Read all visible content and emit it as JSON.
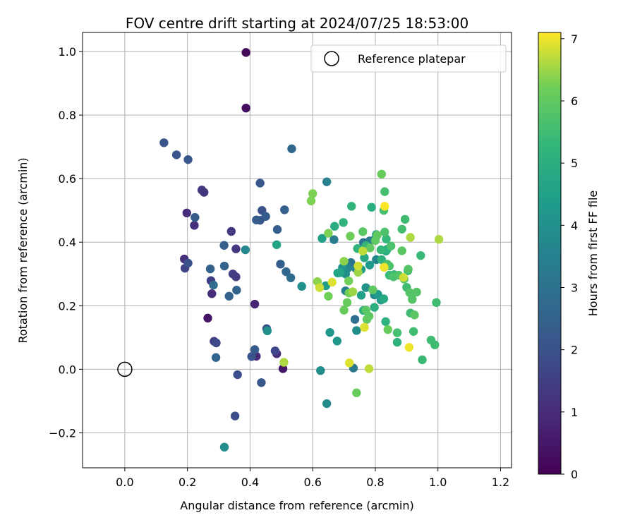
{
  "chart_data": {
    "type": "scatter",
    "title": "FOV centre drift starting at 2024/07/25 18:53:00",
    "xlabel": "Angular distance from reference (arcmin)",
    "ylabel": "Rotation from reference (arcmin)",
    "xlim": [
      -0.135,
      1.235
    ],
    "ylim": [
      -0.31,
      1.06
    ],
    "xticks": [
      0.0,
      0.2,
      0.4,
      0.6,
      0.8,
      1.0,
      1.2
    ],
    "yticks": [
      -0.2,
      0.0,
      0.2,
      0.4,
      0.6,
      0.8,
      1.0
    ],
    "xtick_labels": [
      "0.0",
      "0.2",
      "0.4",
      "0.6",
      "0.8",
      "1.0",
      "1.2"
    ],
    "ytick_labels": [
      "−0.2",
      "0.0",
      "0.2",
      "0.4",
      "0.6",
      "0.8",
      "1.0"
    ],
    "grid": true,
    "colormap": "viridis",
    "colorbar": {
      "label": "Hours from first FF file",
      "range": [
        0,
        7.1
      ],
      "ticks": [
        0,
        1,
        2,
        3,
        4,
        5,
        6,
        7
      ],
      "tick_labels": [
        "0",
        "1",
        "2",
        "3",
        "4",
        "5",
        "6",
        "7"
      ]
    },
    "legend": {
      "placement": "top-right",
      "label": "Reference platepar"
    },
    "reference_point": {
      "x": 0.0,
      "y": 0.0
    },
    "points": [
      {
        "x": 0.387,
        "y": 0.997,
        "h": 0.2
      },
      {
        "x": 0.387,
        "y": 0.822,
        "h": 0.3
      },
      {
        "x": 0.265,
        "y": 0.161,
        "h": 0.4
      },
      {
        "x": 0.505,
        "y": 0.002,
        "h": 0.5
      },
      {
        "x": 0.415,
        "y": 0.205,
        "h": 0.8
      },
      {
        "x": 0.42,
        "y": 0.041,
        "h": 0.9
      },
      {
        "x": 0.485,
        "y": 0.049,
        "h": 1.0
      },
      {
        "x": 0.278,
        "y": 0.238,
        "h": 1.0
      },
      {
        "x": 0.198,
        "y": 0.492,
        "h": 1.0
      },
      {
        "x": 0.222,
        "y": 0.453,
        "h": 1.1
      },
      {
        "x": 0.19,
        "y": 0.347,
        "h": 1.1
      },
      {
        "x": 0.253,
        "y": 0.557,
        "h": 1.2
      },
      {
        "x": 0.246,
        "y": 0.564,
        "h": 1.3
      },
      {
        "x": 0.34,
        "y": 0.434,
        "h": 1.3
      },
      {
        "x": 0.355,
        "y": 0.379,
        "h": 1.3
      },
      {
        "x": 0.345,
        "y": 0.3,
        "h": 1.4
      },
      {
        "x": 0.355,
        "y": 0.291,
        "h": 1.4
      },
      {
        "x": 0.275,
        "y": 0.279,
        "h": 1.5
      },
      {
        "x": 0.285,
        "y": 0.088,
        "h": 1.5
      },
      {
        "x": 0.192,
        "y": 0.318,
        "h": 1.6
      },
      {
        "x": 0.48,
        "y": 0.058,
        "h": 1.7
      },
      {
        "x": 0.292,
        "y": 0.083,
        "h": 1.8
      },
      {
        "x": 0.36,
        "y": -0.017,
        "h": 1.9
      },
      {
        "x": 0.352,
        "y": -0.147,
        "h": 1.9
      },
      {
        "x": 0.453,
        "y": 0.128,
        "h": 2.0
      },
      {
        "x": 0.202,
        "y": 0.334,
        "h": 2.0
      },
      {
        "x": 0.438,
        "y": 0.5,
        "h": 2.0
      },
      {
        "x": 0.405,
        "y": 0.04,
        "h": 2.1
      },
      {
        "x": 0.432,
        "y": 0.469,
        "h": 2.1
      },
      {
        "x": 0.125,
        "y": 0.713,
        "h": 2.1
      },
      {
        "x": 0.165,
        "y": 0.675,
        "h": 2.1
      },
      {
        "x": 0.202,
        "y": 0.66,
        "h": 2.2
      },
      {
        "x": 0.432,
        "y": 0.586,
        "h": 2.2
      },
      {
        "x": 0.436,
        "y": -0.042,
        "h": 2.2
      },
      {
        "x": 0.224,
        "y": 0.478,
        "h": 2.3
      },
      {
        "x": 0.42,
        "y": 0.47,
        "h": 2.3
      },
      {
        "x": 0.45,
        "y": 0.481,
        "h": 2.3
      },
      {
        "x": 0.415,
        "y": 0.062,
        "h": 2.3
      },
      {
        "x": 0.317,
        "y": 0.39,
        "h": 2.4
      },
      {
        "x": 0.51,
        "y": 0.502,
        "h": 2.4
      },
      {
        "x": 0.487,
        "y": 0.44,
        "h": 2.4
      },
      {
        "x": 0.497,
        "y": 0.331,
        "h": 2.4
      },
      {
        "x": 0.318,
        "y": 0.325,
        "h": 2.5
      },
      {
        "x": 0.273,
        "y": 0.316,
        "h": 2.5
      },
      {
        "x": 0.333,
        "y": 0.23,
        "h": 2.5
      },
      {
        "x": 0.357,
        "y": 0.249,
        "h": 2.5
      },
      {
        "x": 0.515,
        "y": 0.307,
        "h": 2.6
      },
      {
        "x": 0.291,
        "y": 0.037,
        "h": 2.6
      },
      {
        "x": 0.533,
        "y": 0.694,
        "h": 2.7
      },
      {
        "x": 0.53,
        "y": 0.288,
        "h": 2.8
      },
      {
        "x": 0.283,
        "y": 0.265,
        "h": 2.8
      },
      {
        "x": 0.735,
        "y": 0.157,
        "h": 2.9
      },
      {
        "x": 0.762,
        "y": 0.399,
        "h": 3.0
      },
      {
        "x": 0.722,
        "y": 0.336,
        "h": 3.1
      },
      {
        "x": 0.73,
        "y": 0.004,
        "h": 3.2
      },
      {
        "x": 0.782,
        "y": 0.404,
        "h": 3.3
      },
      {
        "x": 0.8,
        "y": 0.411,
        "h": 3.3
      },
      {
        "x": 0.705,
        "y": 0.247,
        "h": 3.4
      },
      {
        "x": 0.668,
        "y": 0.408,
        "h": 3.4
      },
      {
        "x": 0.738,
        "y": 0.317,
        "h": 3.5
      },
      {
        "x": 0.645,
        "y": 0.59,
        "h": 3.5
      },
      {
        "x": 0.712,
        "y": 0.318,
        "h": 3.6
      },
      {
        "x": 0.385,
        "y": 0.376,
        "h": 3.7
      },
      {
        "x": 0.803,
        "y": 0.345,
        "h": 3.7
      },
      {
        "x": 0.797,
        "y": 0.234,
        "h": 3.8
      },
      {
        "x": 0.705,
        "y": 0.3,
        "h": 3.9
      },
      {
        "x": 0.625,
        "y": -0.004,
        "h": 3.9
      },
      {
        "x": 0.74,
        "y": 0.122,
        "h": 3.9
      },
      {
        "x": 0.645,
        "y": -0.108,
        "h": 3.9
      },
      {
        "x": 0.318,
        "y": -0.245,
        "h": 3.9
      },
      {
        "x": 0.565,
        "y": 0.261,
        "h": 4.0
      },
      {
        "x": 0.455,
        "y": 0.121,
        "h": 4.0
      },
      {
        "x": 0.77,
        "y": 0.257,
        "h": 4.1
      },
      {
        "x": 0.695,
        "y": 0.32,
        "h": 4.1
      },
      {
        "x": 0.655,
        "y": 0.116,
        "h": 4.2
      },
      {
        "x": 0.678,
        "y": 0.089,
        "h": 4.2
      },
      {
        "x": 0.808,
        "y": 0.236,
        "h": 4.3
      },
      {
        "x": 0.818,
        "y": 0.218,
        "h": 4.3
      },
      {
        "x": 0.782,
        "y": 0.328,
        "h": 4.3
      },
      {
        "x": 0.755,
        "y": 0.314,
        "h": 4.4
      },
      {
        "x": 0.642,
        "y": 0.263,
        "h": 4.4
      },
      {
        "x": 0.63,
        "y": 0.412,
        "h": 4.5
      },
      {
        "x": 0.755,
        "y": 0.233,
        "h": 4.5
      },
      {
        "x": 0.485,
        "y": 0.392,
        "h": 4.6
      },
      {
        "x": 0.68,
        "y": 0.303,
        "h": 4.6
      },
      {
        "x": 0.688,
        "y": 0.304,
        "h": 4.7
      },
      {
        "x": 0.803,
        "y": 0.424,
        "h": 4.7
      },
      {
        "x": 0.765,
        "y": 0.351,
        "h": 4.8
      },
      {
        "x": 0.827,
        "y": 0.222,
        "h": 4.8
      },
      {
        "x": 0.834,
        "y": 0.372,
        "h": 4.9
      },
      {
        "x": 0.67,
        "y": 0.45,
        "h": 4.9
      },
      {
        "x": 0.762,
        "y": 0.185,
        "h": 5.0
      },
      {
        "x": 0.797,
        "y": 0.195,
        "h": 5.0
      },
      {
        "x": 0.788,
        "y": 0.51,
        "h": 5.0
      },
      {
        "x": 0.82,
        "y": 0.345,
        "h": 5.1
      },
      {
        "x": 0.838,
        "y": 0.378,
        "h": 5.1
      },
      {
        "x": 0.87,
        "y": 0.085,
        "h": 5.1
      },
      {
        "x": 0.833,
        "y": 0.15,
        "h": 5.1
      },
      {
        "x": 0.698,
        "y": 0.462,
        "h": 5.2
      },
      {
        "x": 0.724,
        "y": 0.513,
        "h": 5.2
      },
      {
        "x": 0.743,
        "y": 0.38,
        "h": 5.2
      },
      {
        "x": 0.77,
        "y": 0.389,
        "h": 5.3
      },
      {
        "x": 0.818,
        "y": 0.376,
        "h": 5.3
      },
      {
        "x": 0.835,
        "y": 0.41,
        "h": 5.3
      },
      {
        "x": 0.845,
        "y": 0.296,
        "h": 5.4
      },
      {
        "x": 0.86,
        "y": 0.298,
        "h": 5.4
      },
      {
        "x": 0.904,
        "y": 0.31,
        "h": 5.4
      },
      {
        "x": 0.945,
        "y": 0.358,
        "h": 5.4
      },
      {
        "x": 0.95,
        "y": 0.03,
        "h": 5.4
      },
      {
        "x": 0.99,
        "y": 0.077,
        "h": 5.5
      },
      {
        "x": 0.978,
        "y": 0.092,
        "h": 5.5
      },
      {
        "x": 0.995,
        "y": 0.21,
        "h": 5.5
      },
      {
        "x": 0.912,
        "y": 0.177,
        "h": 5.5
      },
      {
        "x": 0.922,
        "y": 0.119,
        "h": 5.5
      },
      {
        "x": 0.9,
        "y": 0.258,
        "h": 5.5
      },
      {
        "x": 0.895,
        "y": 0.472,
        "h": 5.5
      },
      {
        "x": 0.885,
        "y": 0.441,
        "h": 5.6
      },
      {
        "x": 0.87,
        "y": 0.115,
        "h": 5.6
      },
      {
        "x": 0.83,
        "y": 0.559,
        "h": 5.6
      },
      {
        "x": 0.827,
        "y": 0.5,
        "h": 5.6
      },
      {
        "x": 0.83,
        "y": 0.432,
        "h": 5.7
      },
      {
        "x": 0.85,
        "y": 0.388,
        "h": 5.7
      },
      {
        "x": 0.838,
        "y": 0.331,
        "h": 5.7
      },
      {
        "x": 0.845,
        "y": 0.325,
        "h": 5.7
      },
      {
        "x": 0.858,
        "y": 0.291,
        "h": 5.7
      },
      {
        "x": 0.875,
        "y": 0.296,
        "h": 5.8
      },
      {
        "x": 0.892,
        "y": 0.284,
        "h": 5.8
      },
      {
        "x": 0.905,
        "y": 0.315,
        "h": 5.8
      },
      {
        "x": 0.91,
        "y": 0.241,
        "h": 5.8
      },
      {
        "x": 0.932,
        "y": 0.243,
        "h": 5.8
      },
      {
        "x": 0.918,
        "y": 0.22,
        "h": 5.8
      },
      {
        "x": 0.925,
        "y": 0.171,
        "h": 5.9
      },
      {
        "x": 0.885,
        "y": 0.373,
        "h": 5.9
      },
      {
        "x": 0.76,
        "y": 0.433,
        "h": 5.9
      },
      {
        "x": 0.77,
        "y": 0.186,
        "h": 5.9
      },
      {
        "x": 0.78,
        "y": 0.167,
        "h": 5.9
      },
      {
        "x": 0.773,
        "y": 0.157,
        "h": 6.0
      },
      {
        "x": 0.792,
        "y": 0.25,
        "h": 6.0
      },
      {
        "x": 0.783,
        "y": 0.382,
        "h": 6.0
      },
      {
        "x": 0.8,
        "y": 0.405,
        "h": 6.0
      },
      {
        "x": 0.806,
        "y": 0.422,
        "h": 6.0
      },
      {
        "x": 0.82,
        "y": 0.614,
        "h": 6.1
      },
      {
        "x": 0.84,
        "y": 0.125,
        "h": 6.1
      },
      {
        "x": 0.74,
        "y": -0.074,
        "h": 6.1
      },
      {
        "x": 0.7,
        "y": 0.186,
        "h": 6.1
      },
      {
        "x": 0.71,
        "y": 0.21,
        "h": 6.1
      },
      {
        "x": 0.716,
        "y": 0.24,
        "h": 6.2
      },
      {
        "x": 0.715,
        "y": 0.278,
        "h": 6.2
      },
      {
        "x": 0.72,
        "y": 0.419,
        "h": 6.2
      },
      {
        "x": 0.65,
        "y": 0.23,
        "h": 6.2
      },
      {
        "x": 0.65,
        "y": 0.428,
        "h": 6.3
      },
      {
        "x": 0.6,
        "y": 0.553,
        "h": 6.3
      },
      {
        "x": 0.595,
        "y": 0.53,
        "h": 6.3
      },
      {
        "x": 0.615,
        "y": 0.276,
        "h": 6.4
      },
      {
        "x": 0.7,
        "y": 0.34,
        "h": 6.4
      },
      {
        "x": 0.728,
        "y": 0.244,
        "h": 6.5
      },
      {
        "x": 0.745,
        "y": 0.305,
        "h": 6.5
      },
      {
        "x": 0.912,
        "y": 0.415,
        "h": 6.6
      },
      {
        "x": 1.003,
        "y": 0.409,
        "h": 6.6
      },
      {
        "x": 0.508,
        "y": 0.022,
        "h": 6.6
      },
      {
        "x": 0.78,
        "y": 0.002,
        "h": 6.7
      },
      {
        "x": 0.76,
        "y": 0.372,
        "h": 6.7
      },
      {
        "x": 0.745,
        "y": 0.325,
        "h": 6.8
      },
      {
        "x": 0.89,
        "y": 0.289,
        "h": 6.8
      },
      {
        "x": 0.622,
        "y": 0.257,
        "h": 6.8
      },
      {
        "x": 0.662,
        "y": 0.274,
        "h": 6.9
      },
      {
        "x": 0.717,
        "y": 0.02,
        "h": 6.9
      },
      {
        "x": 0.765,
        "y": 0.132,
        "h": 6.9
      },
      {
        "x": 0.828,
        "y": 0.321,
        "h": 7.0
      },
      {
        "x": 0.908,
        "y": 0.069,
        "h": 7.0
      },
      {
        "x": 0.83,
        "y": 0.513,
        "h": 7.1
      }
    ]
  }
}
